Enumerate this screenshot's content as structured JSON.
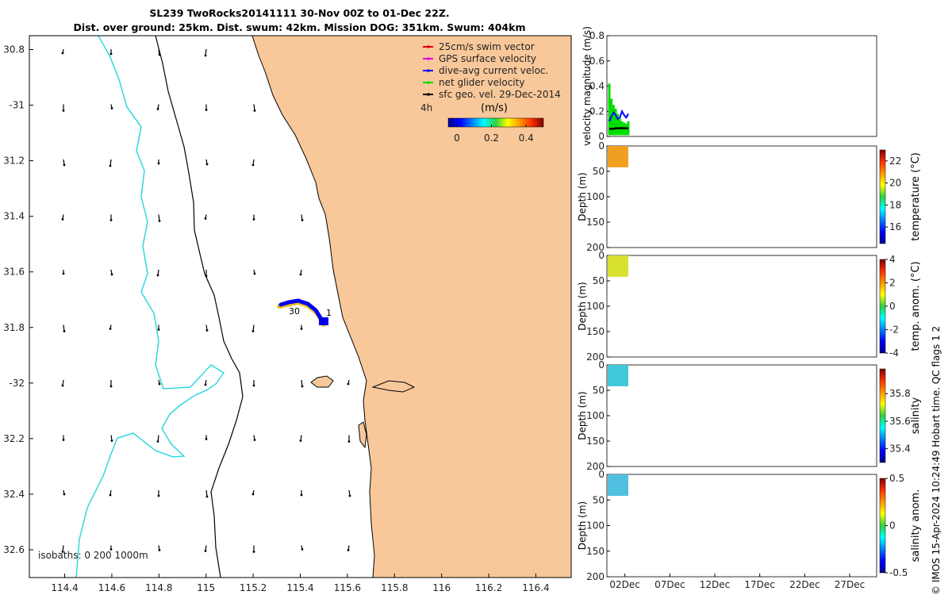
{
  "title_line1": "SL239 TwoRocks20141111 30-Nov 00Z to 01-Dec 22Z.",
  "title_line2": "Dist. over ground: 25km. Dist. swum: 42km. Mission DOG: 351km. Swum: 404km",
  "chart_data": [
    {
      "type": "map",
      "xlim": [
        114.25,
        116.55
      ],
      "ylim": [
        -32.7,
        -30.75
      ],
      "xticks": [
        114.4,
        114.6,
        114.8,
        115,
        115.2,
        115.4,
        115.6,
        115.8,
        116,
        116.2,
        116.4
      ],
      "xtick_labels": [
        "114.4",
        "114.6",
        "114.8",
        "115",
        "115.2",
        "115.4",
        "115.6",
        "115.8",
        "116",
        "116.2",
        "116.4"
      ],
      "yticks": [
        -30.8,
        -31,
        -31.2,
        -31.4,
        -31.6,
        -31.8,
        -32,
        -32.2,
        -32.4,
        -32.6
      ],
      "ytick_labels": [
        "30.8",
        "-31",
        "31.2",
        "31.4",
        "31.6",
        "31.8",
        "-32",
        "32.2",
        "32.4",
        "32.6"
      ],
      "legend": [
        {
          "label": "25cm/s swim vector",
          "color": "#e00000"
        },
        {
          "label": "GPS surface velocity",
          "color": "#e000e0"
        },
        {
          "label": "dive-avg current veloc.",
          "color": "#0000ff"
        },
        {
          "label": "net glider velocity",
          "color": "#00dd00"
        },
        {
          "label": "sfc geo. vel. 29-Dec-2014",
          "color": "#000000"
        }
      ],
      "legend_note": "4h",
      "colorbar": {
        "label": "(m/s)",
        "ticks": [
          0,
          0.2,
          0.4
        ],
        "tick_labels": [
          "0",
          "0.2",
          "0.4"
        ],
        "range": [
          -0.05,
          0.5
        ]
      },
      "isobaths_label": "isobaths: 0   200  1000m",
      "track_labels": [
        {
          "text": "30",
          "lon": 115.3,
          "lat": -31.77
        },
        {
          "text": "1",
          "lon": 115.53,
          "lat": -31.75
        }
      ],
      "land_color": "#f8c89a"
    },
    {
      "type": "scatter",
      "ylabel": "velocity magnitude (m/s)",
      "ylim": [
        0,
        0.8
      ],
      "yticks": [
        0,
        0.2,
        0.4,
        0.6,
        0.8
      ],
      "ytick_labels": [
        "0",
        "0.2",
        "0.4",
        "0.6",
        "0.8"
      ],
      "series": [
        {
          "name": "net glider velocity",
          "color": "#00dd00",
          "values": [
            0.42,
            0.3,
            0.25,
            0.22,
            0.18,
            0.14,
            0.12,
            0.11,
            0.1,
            0.12
          ]
        },
        {
          "name": "dive-avg current veloc.",
          "color": "#0000ff",
          "values": [
            0.12,
            0.16,
            0.19,
            0.17,
            0.14,
            0.15,
            0.2,
            0.17,
            0.15,
            0.18
          ]
        },
        {
          "name": "sfc geo. vel.",
          "color": "#000000",
          "values": [
            0.06,
            0.06,
            0.06,
            0.065,
            0.065,
            0.065,
            0.065,
            0.065,
            0.065,
            0.065
          ]
        }
      ]
    },
    {
      "type": "heatmap",
      "ylabel": "Depth (m)",
      "ylim": [
        0,
        200
      ],
      "yticks": [
        0,
        50,
        100,
        150,
        200
      ],
      "ytick_labels": [
        "0",
        "50",
        "100",
        "150",
        "200"
      ],
      "colorbar_label": "temperature (°C)",
      "cticks": [
        "16",
        "18",
        "20",
        "22"
      ],
      "crange": [
        14.5,
        23
      ],
      "data_color": "#f0a020",
      "depth_range": [
        0,
        42
      ]
    },
    {
      "type": "heatmap",
      "ylabel": "Depth (m)",
      "ylim": [
        0,
        200
      ],
      "yticks": [
        0,
        50,
        100,
        150,
        200
      ],
      "ytick_labels": [
        "0",
        "50",
        "100",
        "150",
        "200"
      ],
      "colorbar_label": "temp. anom. (°C)",
      "cticks": [
        "-4",
        "-2",
        "0",
        "2",
        "4"
      ],
      "crange": [
        -4,
        4
      ],
      "data_color": "#d8e030",
      "depth_range": [
        0,
        42
      ]
    },
    {
      "type": "heatmap",
      "ylabel": "Depth (m)",
      "ylim": [
        0,
        200
      ],
      "yticks": [
        0,
        50,
        100,
        150,
        200
      ],
      "ytick_labels": [
        "0",
        "50",
        "100",
        "150",
        "200"
      ],
      "colorbar_label": "salinity",
      "cticks": [
        "35.4",
        "35.6",
        "35.8"
      ],
      "crange": [
        35.3,
        35.98
      ],
      "data_color": "#40c8d8",
      "depth_range": [
        0,
        42
      ]
    },
    {
      "type": "heatmap",
      "ylabel": "Depth (m)",
      "ylim": [
        0,
        200
      ],
      "yticks": [
        0,
        50,
        100,
        150,
        200
      ],
      "ytick_labels": [
        "0",
        "50",
        "100",
        "150",
        "200"
      ],
      "colorbar_label": "salinity anom.",
      "cticks": [
        "-0.5",
        "0",
        "0.5"
      ],
      "crange": [
        -0.5,
        0.5
      ],
      "data_color": "#50c0e0",
      "depth_range": [
        0,
        42
      ]
    }
  ],
  "time_axis": {
    "labels": [
      "02Dec",
      "07Dec",
      "12Dec",
      "17Dec",
      "22Dec",
      "27Dec"
    ]
  },
  "credit": "© IMOS 15-Apr-2024 10:24:49 Hobart time. QC flags 1  2"
}
